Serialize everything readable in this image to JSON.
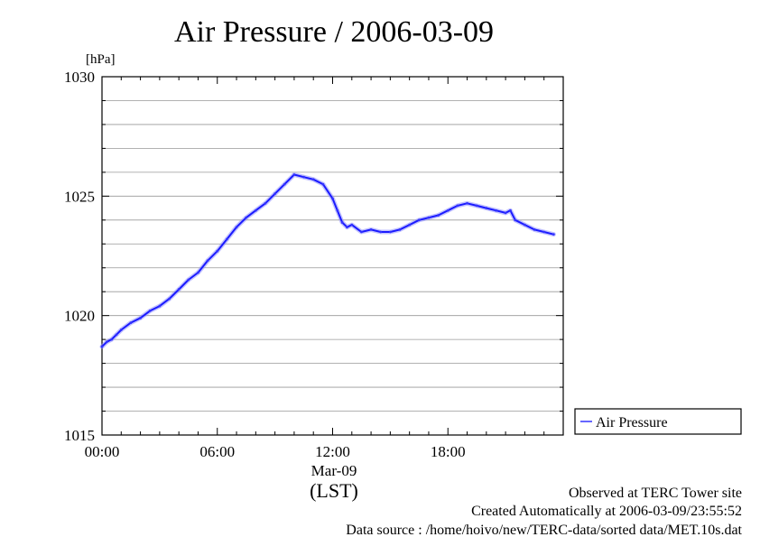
{
  "chart_data": {
    "type": "line",
    "title": "Air Pressure / 2006-03-09",
    "unit_label": "[hPa]",
    "xlabel": "(LST)",
    "date_label": "Mar-09",
    "ylim": [
      1015,
      1030
    ],
    "yticks": [
      "1015",
      "1020",
      "1025",
      "1030"
    ],
    "xlim_hours": [
      0,
      24
    ],
    "xticks": [
      {
        "hour": 0,
        "label": "00:00"
      },
      {
        "hour": 6,
        "label": "06:00"
      },
      {
        "hour": 12,
        "label": "12:00"
      },
      {
        "hour": 18,
        "label": "18:00"
      }
    ],
    "grid": true,
    "legend_placement": "right",
    "series": [
      {
        "name": "Air Pressure",
        "color": "#3333ff",
        "x_hours": [
          0,
          0.25,
          0.5,
          0.75,
          1,
          1.5,
          2,
          2.5,
          3,
          3.5,
          4,
          4.5,
          5,
          5.5,
          6,
          6.5,
          7,
          7.5,
          8,
          8.5,
          9,
          9.5,
          10,
          10.5,
          11,
          11.5,
          12,
          12.25,
          12.5,
          12.75,
          13,
          13.5,
          14,
          14.5,
          15,
          15.5,
          16,
          16.5,
          17,
          17.5,
          18,
          18.5,
          19,
          19.5,
          20,
          20.5,
          21,
          21.25,
          21.5,
          22,
          22.5,
          23,
          23.5
        ],
        "values": [
          1018.7,
          1018.9,
          1019.0,
          1019.2,
          1019.4,
          1019.7,
          1019.9,
          1020.2,
          1020.4,
          1020.7,
          1021.1,
          1021.5,
          1021.8,
          1022.3,
          1022.7,
          1023.2,
          1023.7,
          1024.1,
          1024.4,
          1024.7,
          1025.1,
          1025.5,
          1025.9,
          1025.8,
          1025.7,
          1025.5,
          1024.9,
          1024.4,
          1023.9,
          1023.7,
          1023.8,
          1023.5,
          1023.6,
          1023.5,
          1023.5,
          1023.6,
          1023.8,
          1024.0,
          1024.1,
          1024.2,
          1024.4,
          1024.6,
          1024.7,
          1024.6,
          1024.5,
          1024.4,
          1024.3,
          1024.4,
          1024.0,
          1023.8,
          1023.6,
          1023.5,
          1023.4
        ]
      }
    ]
  },
  "footer": {
    "site": "Observed at TERC Tower site",
    "created": "Created Automatically at 2006-03-09/23:55:52",
    "source": "Data source : /home/hoivo/new/TERC-data/sorted  data/MET.10s.dat"
  }
}
